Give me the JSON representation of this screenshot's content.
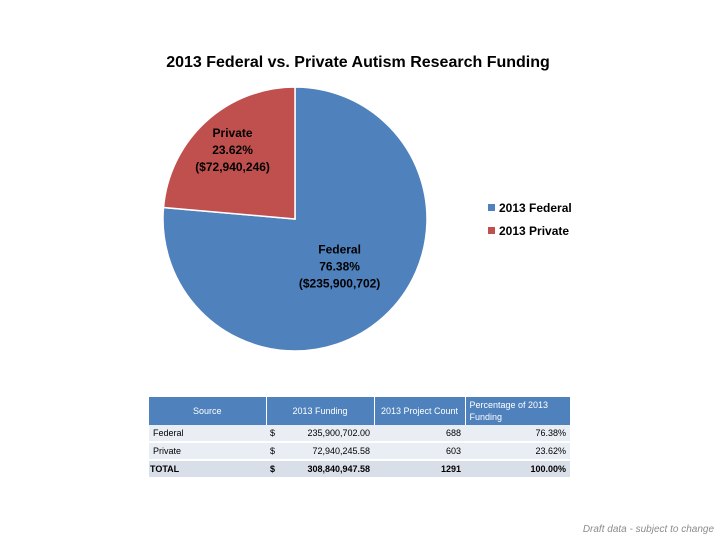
{
  "chart_data": {
    "type": "pie",
    "title": "2013 Federal vs. Private Autism Research Funding",
    "slices": [
      {
        "name": "2013 Federal",
        "label": "Federal",
        "percent_label": "76.38%",
        "amount_label": "($235,900,702)",
        "value": 235900702.0,
        "color": "#4f81bd"
      },
      {
        "name": "2013 Private",
        "label": "Private",
        "percent_label": "23.62%",
        "amount_label": "($72,940,246)",
        "value": 72940245.58,
        "color": "#c0504d"
      }
    ],
    "legend_position": "right"
  },
  "table": {
    "headers": {
      "source": "Source",
      "funding": "2013 Funding",
      "count": "2013 Project Count",
      "percent": "Percentage of 2013 Funding"
    },
    "rows": [
      {
        "source": "Federal",
        "currency": "$",
        "funding": "235,900,702.00",
        "count": "688",
        "percent": "76.38%"
      },
      {
        "source": "Private",
        "currency": "$",
        "funding": "72,940,245.58",
        "count": "603",
        "percent": "23.62%"
      }
    ],
    "total": {
      "source": "TOTAL",
      "currency": "$",
      "funding": "308,840,947.58",
      "count": "1291",
      "percent": "100.00%"
    }
  },
  "footer_note": "Draft data - subject to change"
}
